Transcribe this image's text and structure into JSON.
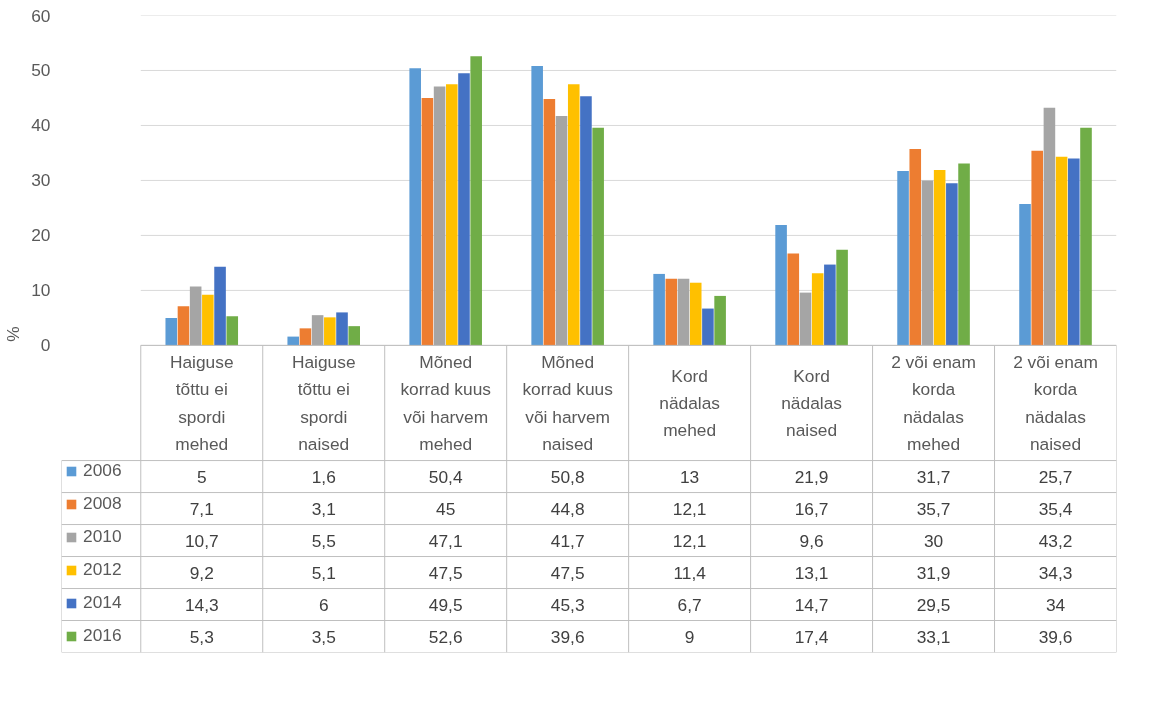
{
  "chart_data": {
    "type": "bar",
    "ylabel": "%",
    "categories": [
      "Haiguse tõttu ei spordi mehed",
      "Haiguse tõttu ei spordi naised",
      "Mõned korrad kuus või harvem mehed",
      "Mõned korrad kuus või harvem naised",
      "Kord nädalas mehed",
      "Kord nädalas naised",
      "2 või enam korda nädalas mehed",
      "2 või enam korda nädalas naised"
    ],
    "series": [
      {
        "name": "2006",
        "color": "#5b9bd5",
        "values": [
          5,
          1.6,
          50.4,
          50.8,
          13,
          21.9,
          31.7,
          25.7
        ],
        "value_labels": [
          "5",
          "1,6",
          "50,4",
          "50,8",
          "13",
          "21,9",
          "31,7",
          "25,7"
        ]
      },
      {
        "name": "2008",
        "color": "#ed7d31",
        "values": [
          7.1,
          3.1,
          45,
          44.8,
          12.1,
          16.7,
          35.7,
          35.4
        ],
        "value_labels": [
          "7,1",
          "3,1",
          "45",
          "44,8",
          "12,1",
          "16,7",
          "35,7",
          "35,4"
        ]
      },
      {
        "name": "2010",
        "color": "#a5a5a5",
        "values": [
          10.7,
          5.5,
          47.1,
          41.7,
          12.1,
          9.6,
          30,
          43.2
        ],
        "value_labels": [
          "10,7",
          "5,5",
          "47,1",
          "41,7",
          "12,1",
          "9,6",
          "30",
          "43,2"
        ]
      },
      {
        "name": "2012",
        "color": "#ffc000",
        "values": [
          9.2,
          5.1,
          47.5,
          47.5,
          11.4,
          13.1,
          31.9,
          34.3
        ],
        "value_labels": [
          "9,2",
          "5,1",
          "47,5",
          "47,5",
          "11,4",
          "13,1",
          "31,9",
          "34,3"
        ]
      },
      {
        "name": "2014",
        "color": "#4472c4",
        "values": [
          14.3,
          6,
          49.5,
          45.3,
          6.7,
          14.7,
          29.5,
          34
        ],
        "value_labels": [
          "14,3",
          "6",
          "49,5",
          "45,3",
          "6,7",
          "14,7",
          "29,5",
          "34"
        ]
      },
      {
        "name": "2016",
        "color": "#70ad47",
        "values": [
          5.3,
          3.5,
          52.6,
          39.6,
          9,
          17.4,
          33.1,
          39.6
        ],
        "value_labels": [
          "5,3",
          "3,5",
          "52,6",
          "39,6",
          "9",
          "17,4",
          "33,1",
          "39,6"
        ]
      }
    ],
    "ylim": [
      0,
      60
    ],
    "yticks": [
      0,
      10,
      20,
      30,
      40,
      50,
      60
    ],
    "grid": "y",
    "legend": "bottom"
  }
}
